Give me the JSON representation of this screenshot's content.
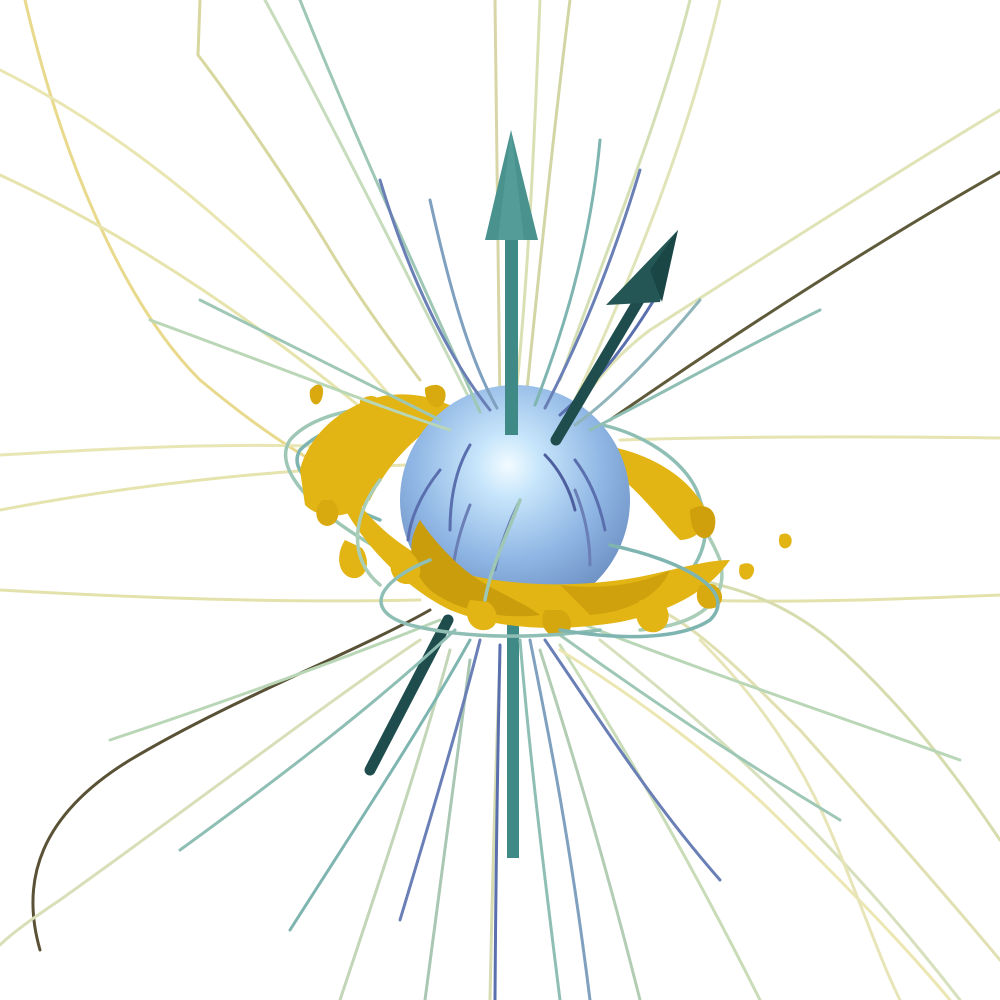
{
  "scene": {
    "background": "#ffffff",
    "objects": [
      {
        "name": "central-star",
        "color": "#9cc4ee",
        "highlight": "#eaf8ff"
      },
      {
        "name": "accretion-disk",
        "color": "#e2b514",
        "shade": "#b88a00"
      },
      {
        "name": "rotation-axis-arrow",
        "color": "#3f8a86"
      },
      {
        "name": "magnetic-axis-arrow",
        "color": "#1f4d4d"
      },
      {
        "name": "magnetic-field-lines",
        "colors": [
          "#f0eaa8",
          "#c9dcb0",
          "#7fb5b1",
          "#5a6fae",
          "#3a3a2a"
        ]
      }
    ]
  }
}
